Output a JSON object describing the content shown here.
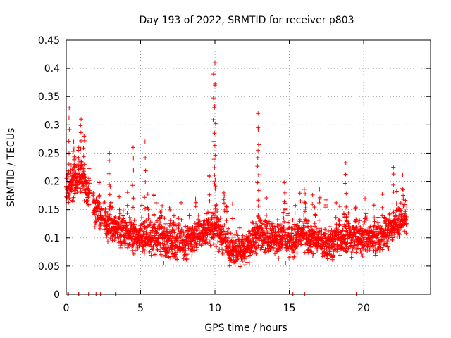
{
  "chart_data": {
    "type": "scatter",
    "title": "Day 193 of 2022, SRMTID for receiver p803",
    "xlabel": "GPS time / hours",
    "ylabel": "SRMTID / TECUs",
    "xlim": [
      0,
      24.5
    ],
    "ylim": [
      0,
      0.45
    ],
    "xticks": [
      0,
      5,
      10,
      15,
      20
    ],
    "xtick_labels": [
      "0",
      "5",
      "10",
      "15",
      "20"
    ],
    "yticks": [
      0,
      0.05,
      0.1,
      0.15,
      0.2,
      0.25,
      0.3,
      0.35,
      0.4,
      0.45
    ],
    "ytick_labels": [
      "0",
      "0.05",
      "0.1",
      "0.15",
      "0.2",
      "0.25",
      "0.3",
      "0.35",
      "0.4",
      "0.45"
    ],
    "grid": true,
    "marker": "plus",
    "color": "#ff0000",
    "x_range_data": [
      0,
      22.9
    ],
    "baseline_points_x": [
      0.1,
      0.8,
      1.5,
      2.0,
      2.3,
      3.3,
      15.2,
      16.0,
      19.5
    ],
    "peaks": [
      {
        "x": 0.2,
        "y": 0.33
      },
      {
        "x": 0.5,
        "y": 0.27
      },
      {
        "x": 1.0,
        "y": 0.31
      },
      {
        "x": 1.2,
        "y": 0.28
      },
      {
        "x": 2.9,
        "y": 0.25
      },
      {
        "x": 4.5,
        "y": 0.26
      },
      {
        "x": 5.3,
        "y": 0.27
      },
      {
        "x": 10.0,
        "y": 0.41
      },
      {
        "x": 9.9,
        "y": 0.39
      },
      {
        "x": 10.0,
        "y": 0.37
      },
      {
        "x": 12.9,
        "y": 0.32
      },
      {
        "x": 12.9,
        "y": 0.295
      },
      {
        "x": 18.8,
        "y": 0.233
      },
      {
        "x": 22.0,
        "y": 0.225
      }
    ],
    "trend": [
      {
        "x": 0.0,
        "y": 0.19
      },
      {
        "x": 1.0,
        "y": 0.21
      },
      {
        "x": 2.0,
        "y": 0.15
      },
      {
        "x": 3.0,
        "y": 0.12
      },
      {
        "x": 4.0,
        "y": 0.11
      },
      {
        "x": 5.0,
        "y": 0.1
      },
      {
        "x": 6.0,
        "y": 0.1
      },
      {
        "x": 7.0,
        "y": 0.09
      },
      {
        "x": 8.0,
        "y": 0.09
      },
      {
        "x": 9.0,
        "y": 0.11
      },
      {
        "x": 10.0,
        "y": 0.12
      },
      {
        "x": 11.0,
        "y": 0.08
      },
      {
        "x": 12.0,
        "y": 0.08
      },
      {
        "x": 13.0,
        "y": 0.11
      },
      {
        "x": 14.0,
        "y": 0.1
      },
      {
        "x": 15.0,
        "y": 0.09
      },
      {
        "x": 16.0,
        "y": 0.11
      },
      {
        "x": 17.0,
        "y": 0.09
      },
      {
        "x": 18.0,
        "y": 0.09
      },
      {
        "x": 19.0,
        "y": 0.1
      },
      {
        "x": 20.0,
        "y": 0.1
      },
      {
        "x": 21.0,
        "y": 0.1
      },
      {
        "x": 22.0,
        "y": 0.12
      },
      {
        "x": 22.9,
        "y": 0.14
      }
    ],
    "gaps": [
      [
        1.6,
        1.8
      ],
      [
        2.4,
        2.5
      ]
    ],
    "sample_step_hours": 0.0083
  }
}
